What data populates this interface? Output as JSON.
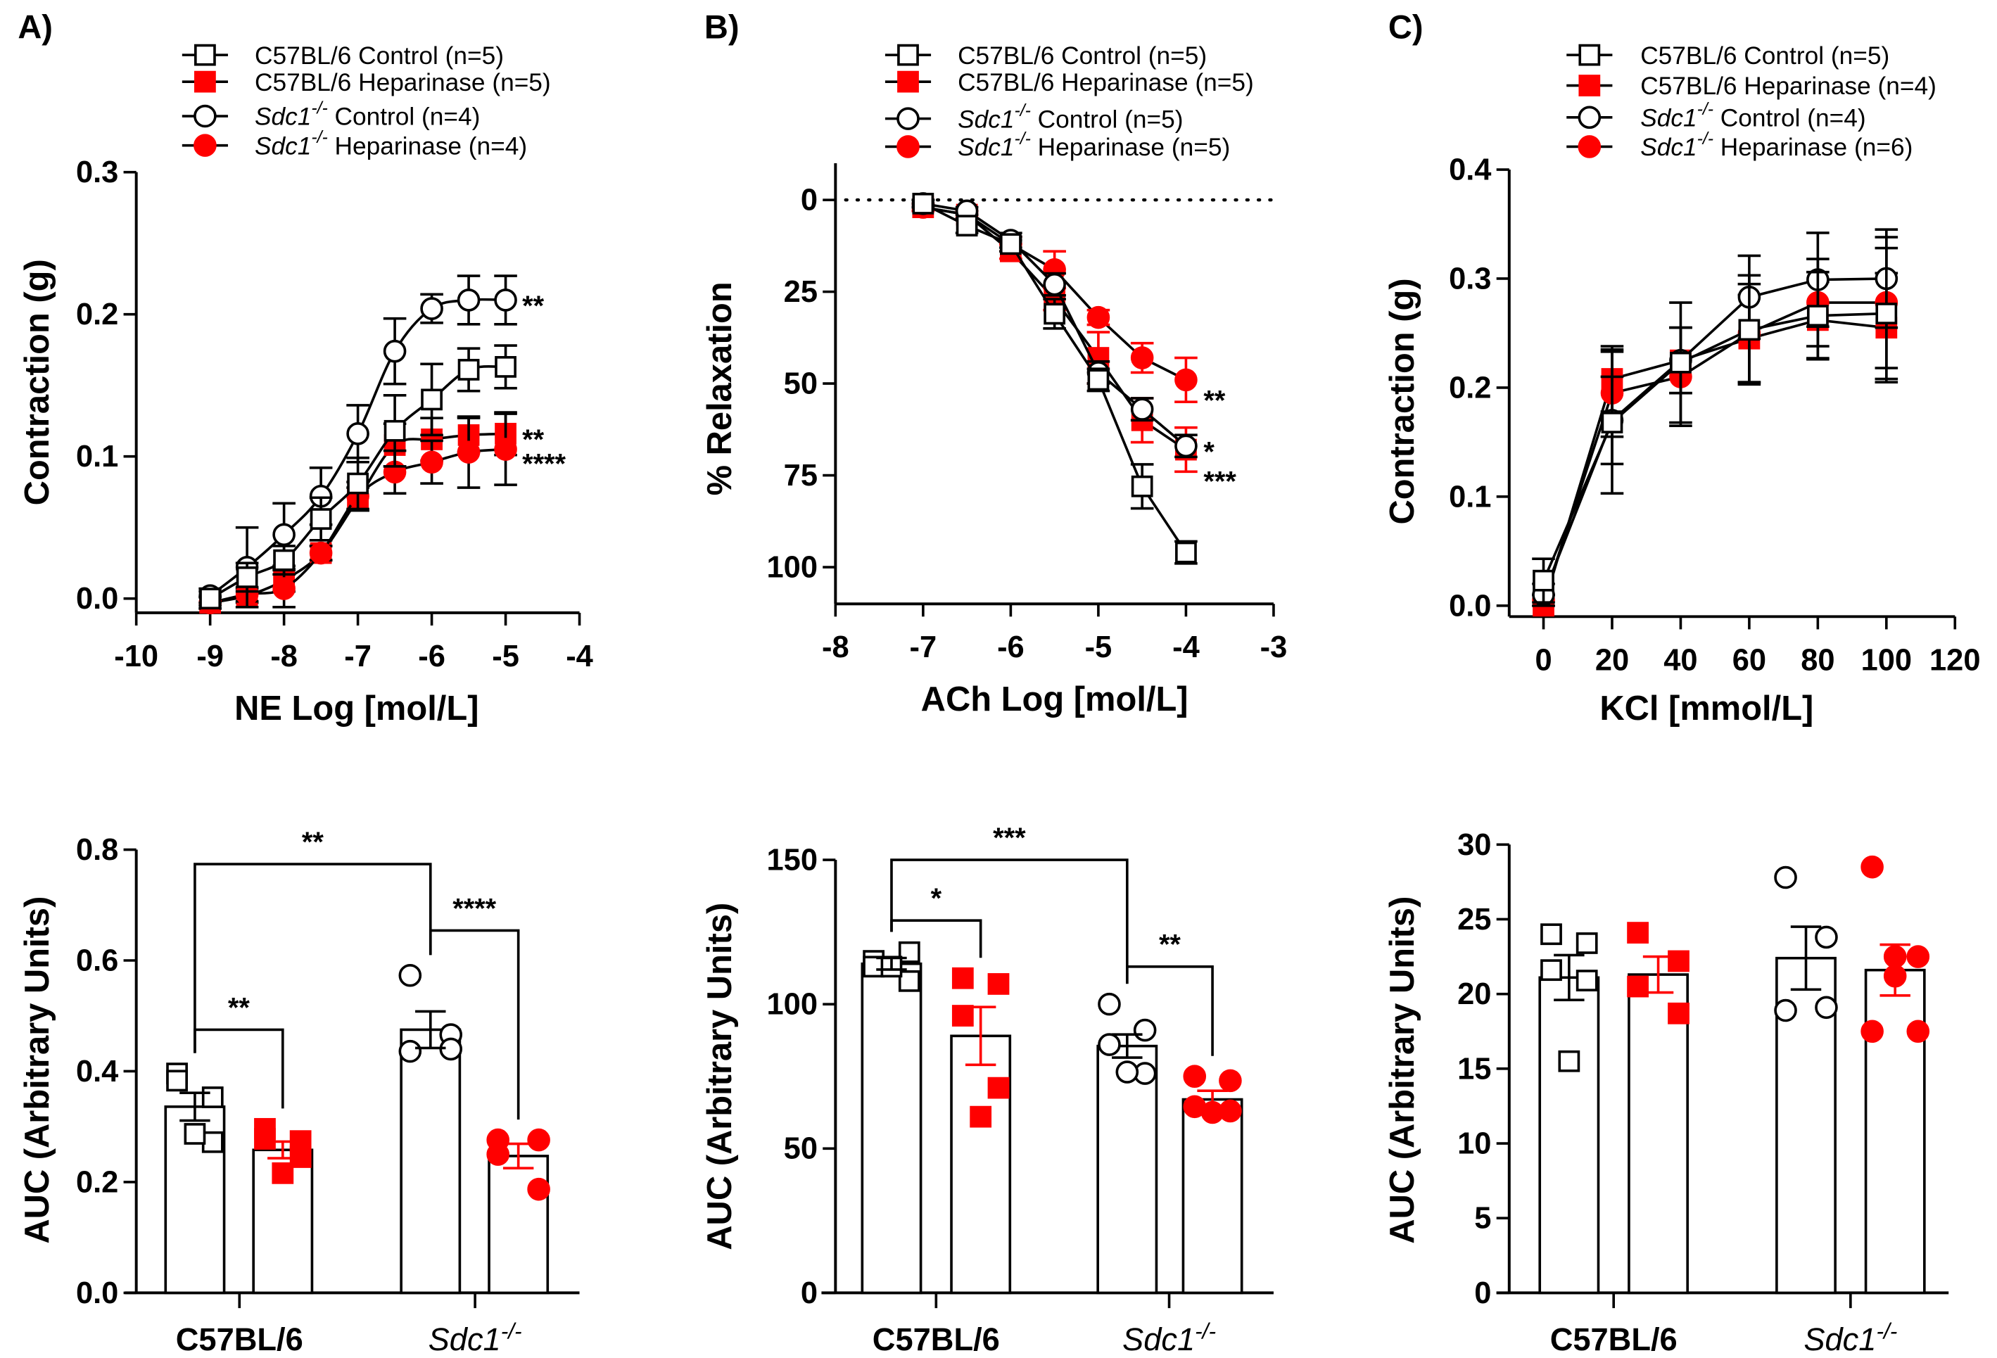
{
  "chart_data": [
    {
      "panel_label": "A)",
      "type": "line",
      "curve": "fitted",
      "xlabel": "NE Log [mol/L]",
      "ylabel": "Contraction (g)",
      "xlim": [
        -10,
        -4
      ],
      "ylim": [
        -0.01,
        0.3
      ],
      "y_reversed": false,
      "xticks": [
        "-10",
        "-9",
        "-8",
        "-7",
        "-6",
        "-5",
        "-4"
      ],
      "yticks": [
        "0.0",
        "0.1",
        "0.2",
        "0.3"
      ],
      "x": [
        -9,
        -8.5,
        -8,
        -7.5,
        -7,
        -6.5,
        -6,
        -5.5,
        -5
      ],
      "series": [
        {
          "name": "C57BL/6 Control (n=5)",
          "marker": "open-square",
          "color": "#000000",
          "values": [
            0.0,
            0.015,
            0.027,
            0.056,
            0.081,
            0.118,
            0.14,
            0.161,
            0.163
          ],
          "sem": [
            0.005,
            0.01,
            0.01,
            0.015,
            0.018,
            0.025,
            0.025,
            0.015,
            0.015
          ]
        },
        {
          "name": "C57BL/6 Heparinase (n=5)",
          "marker": "filled-square",
          "color": "#ff0000",
          "values": [
            -0.003,
            0.002,
            0.013,
            0.032,
            0.07,
            0.108,
            0.112,
            0.115,
            0.116
          ],
          "sem": [
            0.004,
            0.005,
            0.008,
            0.005,
            0.008,
            0.015,
            0.015,
            0.012,
            0.015
          ]
        },
        {
          "name": "Sdc1-/- Control (n=4)",
          "marker": "open-circle",
          "color": "#000000",
          "values": [
            0.002,
            0.022,
            0.045,
            0.072,
            0.116,
            0.174,
            0.204,
            0.21,
            0.21
          ],
          "sem": [
            0.005,
            0.028,
            0.022,
            0.02,
            0.02,
            0.023,
            0.01,
            0.017,
            0.017
          ]
        },
        {
          "name": "Sdc1-/- Heparinase (n=4)",
          "marker": "filled-circle",
          "color": "#ff0000",
          "values": [
            -0.003,
            0.003,
            0.007,
            0.032,
            0.072,
            0.089,
            0.096,
            0.103,
            0.105
          ],
          "sem": [
            0.004,
            0.005,
            0.013,
            0.005,
            0.01,
            0.015,
            0.015,
            0.025,
            0.025
          ]
        }
      ],
      "annotations": [
        {
          "y": 0.21,
          "label": "**"
        },
        {
          "y": 0.116,
          "label": "**"
        },
        {
          "y": 0.099,
          "label": "****"
        }
      ]
    },
    {
      "panel_label": "B)",
      "type": "line",
      "curve": "straight",
      "xlabel": "ACh Log [mol/L]",
      "ylabel": "% Relaxation",
      "xlim": [
        -8,
        -3
      ],
      "ylim": [
        -10,
        110
      ],
      "y_reversed": true,
      "reference_line": 0,
      "xticks": [
        "-8",
        "-7",
        "-6",
        "-5",
        "-4",
        "-3"
      ],
      "yticks": [
        "0",
        "25",
        "50",
        "75",
        "100"
      ],
      "x": [
        -7,
        -6.5,
        -6,
        -5.5,
        -5,
        -4.5,
        -4
      ],
      "series": [
        {
          "name": "C57BL/6 Control (n=5)",
          "marker": "open-square",
          "color": "#000000",
          "values": [
            1,
            7,
            12,
            31,
            49,
            78,
            96
          ],
          "sem": [
            1,
            2,
            2,
            4,
            3,
            6,
            3
          ]
        },
        {
          "name": "C57BL/6 Heparinase (n=5)",
          "marker": "filled-square",
          "color": "#ff0000",
          "values": [
            2,
            4,
            14,
            27,
            43,
            60,
            68
          ],
          "sem": [
            1,
            1,
            2,
            3,
            7,
            6,
            6
          ]
        },
        {
          "name": "Sdc1-/- Control (n=5)",
          "marker": "open-circle",
          "color": "#000000",
          "values": [
            1,
            3,
            11,
            23,
            47,
            57,
            67
          ],
          "sem": [
            1,
            1,
            2,
            3,
            3,
            3,
            3
          ]
        },
        {
          "name": "Sdc1-/- Heparinase (n=5)",
          "marker": "filled-circle",
          "color": "#ff0000",
          "values": [
            2,
            4,
            12,
            19,
            32,
            43,
            49
          ],
          "sem": [
            1,
            1,
            2,
            5,
            2,
            4,
            6
          ]
        }
      ],
      "annotations": [
        {
          "y": 53,
          "label": "**"
        },
        {
          "y": 67,
          "label": "*"
        },
        {
          "y": 75,
          "label": "***"
        }
      ]
    },
    {
      "panel_label": "C)",
      "type": "line",
      "curve": "straight",
      "xlabel": "KCl [mmol/L]",
      "ylabel": "Contraction (g)",
      "xlim": [
        -10,
        120
      ],
      "ylim": [
        -0.01,
        0.4
      ],
      "y_reversed": false,
      "xticks": [
        "0",
        "20",
        "40",
        "60",
        "80",
        "100",
        "120"
      ],
      "yticks": [
        "0.0",
        "0.1",
        "0.2",
        "0.3",
        "0.4"
      ],
      "x": [
        0,
        20,
        40,
        60,
        80,
        100
      ],
      "series": [
        {
          "name": "C57BL/6 Control (n=5)",
          "marker": "open-square",
          "color": "#000000",
          "values": [
            0.023,
            0.168,
            0.223,
            0.253,
            0.266,
            0.268
          ],
          "sem": [
            0.02,
            0.065,
            0.055,
            0.05,
            0.04,
            0.06
          ]
        },
        {
          "name": "C57BL/6 Heparinase (n=4)",
          "marker": "filled-square",
          "color": "#ff0000",
          "values": [
            0.0,
            0.208,
            0.225,
            0.245,
            0.262,
            0.255
          ],
          "sem": [
            0.01,
            0.03,
            0.03,
            0.04,
            0.035,
            0.05
          ]
        },
        {
          "name": "Sdc1-/- Control (n=4)",
          "marker": "open-circle",
          "color": "#000000",
          "values": [
            0.01,
            0.17,
            0.225,
            0.283,
            0.299,
            0.3
          ],
          "sem": [
            0.01,
            0.04,
            0.03,
            0.038,
            0.043,
            0.045
          ]
        },
        {
          "name": "Sdc1-/- Heparinase (n=6)",
          "marker": "filled-circle",
          "color": "#ff0000",
          "values": [
            0.005,
            0.195,
            0.21,
            0.25,
            0.278,
            0.278
          ],
          "sem": [
            0.005,
            0.04,
            0.045,
            0.045,
            0.04,
            0.06
          ]
        }
      ],
      "annotations": []
    },
    {
      "type": "bar",
      "ylabel": "AUC (Arbitrary Units)",
      "ylim": [
        0,
        0.8
      ],
      "yticks": [
        "0.0",
        "0.2",
        "0.4",
        "0.6",
        "0.8"
      ],
      "categories": [
        "C57BL/6",
        "Sdc1-/-"
      ],
      "bars": [
        {
          "group": 0,
          "marker": "open-square",
          "color": "#000000",
          "mean": 0.336,
          "sem": 0.025,
          "points": [
            0.396,
            0.353,
            0.383,
            0.272,
            0.287
          ]
        },
        {
          "group": 0,
          "marker": "filled-square",
          "color": "#ff0000",
          "mean": 0.258,
          "sem": 0.015,
          "points": [
            0.296,
            0.274,
            0.278,
            0.245,
            0.216
          ]
        },
        {
          "group": 1,
          "marker": "open-circle",
          "color": "#000000",
          "mean": 0.475,
          "sem": 0.033,
          "points": [
            0.573,
            0.466,
            0.436,
            0.44
          ]
        },
        {
          "group": 1,
          "marker": "filled-circle",
          "color": "#ff0000",
          "mean": 0.247,
          "sem": 0.022,
          "points": [
            0.276,
            0.276,
            0.25,
            0.187
          ]
        }
      ],
      "comparisons": [
        {
          "from": 0,
          "to": 2,
          "y": 0.774,
          "label": "**"
        },
        {
          "from": 2,
          "to": 3,
          "y": 0.654,
          "label": "****"
        },
        {
          "from": 0,
          "to": 1,
          "y": 0.475,
          "label": "**"
        }
      ]
    },
    {
      "type": "bar",
      "ylabel": "AUC (Arbitrary Units)",
      "ylim": [
        0,
        150
      ],
      "yticks": [
        "0",
        "50",
        "100",
        "150"
      ],
      "categories": [
        "C57BL/6",
        "Sdc1-/-"
      ],
      "bars": [
        {
          "group": 0,
          "marker": "open-square",
          "color": "#000000",
          "mean": 114,
          "sem": 2,
          "points": [
            115,
            108,
            113,
            118,
            113
          ]
        },
        {
          "group": 0,
          "marker": "filled-square",
          "color": "#ff0000",
          "mean": 89,
          "sem": 10,
          "points": [
            109,
            107,
            96,
            71,
            61
          ]
        },
        {
          "group": 1,
          "marker": "open-circle",
          "color": "#000000",
          "mean": 85.5,
          "sem": 4,
          "points": [
            100,
            91,
            86,
            76,
            76.5
          ]
        },
        {
          "group": 1,
          "marker": "filled-circle",
          "color": "#ff0000",
          "mean": 67,
          "sem": 3,
          "points": [
            75,
            73.5,
            64.5,
            63,
            62.5
          ]
        }
      ],
      "comparisons": [
        {
          "from": 0,
          "to": 2,
          "y": 150,
          "label": "***"
        },
        {
          "from": 0,
          "to": 1,
          "y": 129,
          "label": "*"
        },
        {
          "from": 2,
          "to": 3,
          "y": 113,
          "label": "**"
        }
      ]
    },
    {
      "type": "bar",
      "ylabel": "AUC (Arbitrary Units)",
      "ylim": [
        0,
        30
      ],
      "yticks": [
        "0",
        "5",
        "10",
        "15",
        "20",
        "25",
        "30"
      ],
      "categories": [
        "C57BL/6",
        "Sdc1-/-"
      ],
      "bars": [
        {
          "group": 0,
          "marker": "open-square",
          "color": "#000000",
          "mean": 21.1,
          "sem": 1.5,
          "points": [
            24.0,
            23.4,
            21.6,
            20.9,
            15.5
          ]
        },
        {
          "group": 0,
          "marker": "filled-square",
          "color": "#ff0000",
          "mean": 21.3,
          "sem": 1.2,
          "points": [
            24.1,
            22.2,
            20.5,
            18.7
          ]
        },
        {
          "group": 1,
          "marker": "open-circle",
          "color": "#000000",
          "mean": 22.4,
          "sem": 2.1,
          "points": [
            27.8,
            23.8,
            18.9,
            19.1
          ]
        },
        {
          "group": 1,
          "marker": "filled-circle",
          "color": "#ff0000",
          "mean": 21.6,
          "sem": 1.7,
          "points": [
            28.5,
            22.5,
            22.5,
            21.2,
            17.5,
            17.5
          ]
        }
      ],
      "comparisons": []
    }
  ]
}
